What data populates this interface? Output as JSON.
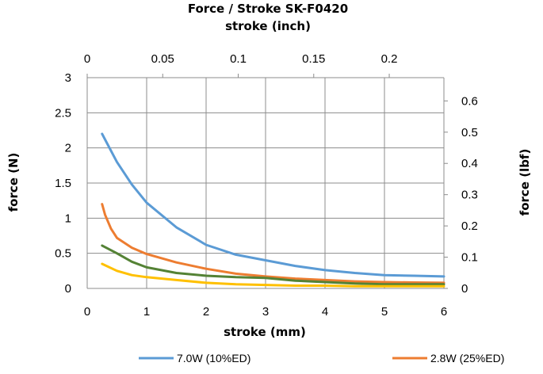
{
  "chart_data": {
    "type": "line",
    "title": "Force / Stroke  SK-F0420",
    "xlabel": "stroke (mm)",
    "x2label": "stroke (inch)",
    "ylabel": "force (N)",
    "y2label": "force (lbf)",
    "xlim": [
      0,
      6
    ],
    "ylim": [
      0,
      3
    ],
    "x2lim": [
      0,
      0.2362
    ],
    "y2lim": [
      0,
      0.6744
    ],
    "x_ticks": [
      "0",
      "1",
      "2",
      "3",
      "4",
      "5",
      "6"
    ],
    "y_ticks": [
      "0",
      "0.5",
      "1",
      "1.5",
      "2",
      "2.5",
      "3"
    ],
    "x2_ticks": [
      "0",
      "0.05",
      "0.1",
      "0.15",
      "0.2"
    ],
    "y2_ticks": [
      "0",
      "0.1",
      "0.2",
      "0.3",
      "0.4",
      "0.5",
      "0.6"
    ],
    "grid": true,
    "legend_position": "bottom",
    "series": [
      {
        "name": "7.0W (10%ED)",
        "color": "#5B9BD5",
        "x": [
          0.25,
          0.3,
          0.5,
          0.75,
          1.0,
          1.5,
          2.0,
          2.5,
          3.0,
          3.5,
          4.0,
          4.5,
          5.0,
          5.5,
          6.0
        ],
        "y": [
          2.2,
          2.12,
          1.8,
          1.48,
          1.22,
          0.87,
          0.62,
          0.48,
          0.4,
          0.32,
          0.26,
          0.22,
          0.19,
          0.18,
          0.17
        ]
      },
      {
        "name": "2.8W (25%ED)",
        "color": "#ED7D31",
        "x": [
          0.25,
          0.3,
          0.4,
          0.5,
          0.75,
          1.0,
          1.5,
          2.0,
          2.5,
          3.0,
          3.5,
          4.0,
          4.5,
          5.0,
          5.5,
          6.0
        ],
        "y": [
          1.2,
          1.05,
          0.85,
          0.72,
          0.58,
          0.49,
          0.37,
          0.28,
          0.21,
          0.17,
          0.14,
          0.12,
          0.1,
          0.09,
          0.085,
          0.08
        ]
      },
      {
        "name": "",
        "color": "#548235",
        "x": [
          0.25,
          0.5,
          0.75,
          1.0,
          1.5,
          2.0,
          2.5,
          3.0,
          3.5,
          4.0,
          4.5,
          5.0,
          5.5,
          6.0
        ],
        "y": [
          0.61,
          0.5,
          0.38,
          0.3,
          0.22,
          0.18,
          0.16,
          0.15,
          0.11,
          0.09,
          0.07,
          0.06,
          0.06,
          0.06
        ]
      },
      {
        "name": "",
        "color": "#FFC000",
        "x": [
          0.25,
          0.5,
          0.75,
          1.0,
          1.5,
          2.0,
          2.5,
          3.0,
          3.5,
          4.0,
          4.5,
          5.0,
          5.5,
          6.0
        ],
        "y": [
          0.35,
          0.25,
          0.19,
          0.16,
          0.12,
          0.08,
          0.06,
          0.05,
          0.04,
          0.04,
          0.03,
          0.03,
          0.03,
          0.03
        ]
      }
    ]
  }
}
